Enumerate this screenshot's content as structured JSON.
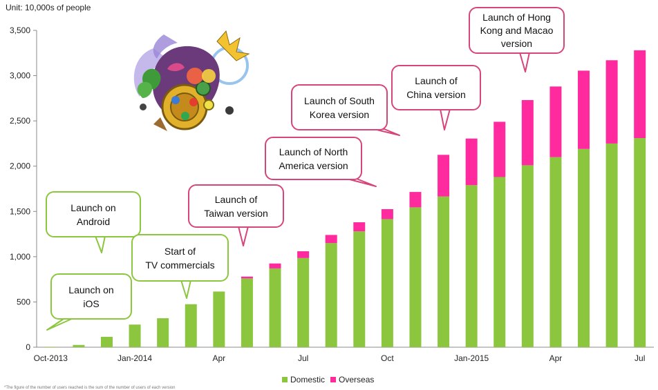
{
  "unit_label": "Unit: 10,000s of people",
  "colors": {
    "domestic": "#8cc63f",
    "overseas": "#ff2a9e",
    "callout_green": "#8cc63f",
    "callout_pink": "#d6457a"
  },
  "chart_data": {
    "type": "bar",
    "stacked": true,
    "title": "",
    "xlabel": "",
    "ylabel": "",
    "ylim": [
      0,
      3500
    ],
    "yticks": [
      "0",
      "500",
      "1,000",
      "1,500",
      "2,000",
      "2,500",
      "3,000",
      "3,500"
    ],
    "xtick_labels": [
      {
        "index": 0,
        "label": "Oct-2013"
      },
      {
        "index": 3,
        "label": "Jan-2014"
      },
      {
        "index": 6,
        "label": "Apr"
      },
      {
        "index": 9,
        "label": "Jul"
      },
      {
        "index": 12,
        "label": "Oct"
      },
      {
        "index": 15,
        "label": "Jan-2015"
      },
      {
        "index": 18,
        "label": "Apr"
      },
      {
        "index": 21,
        "label": "Jul"
      }
    ],
    "categories": [
      "Oct-2013",
      "Nov-2013",
      "Dec-2013",
      "Jan-2014",
      "Feb-2014",
      "Mar-2014",
      "Apr-2014",
      "May-2014",
      "Jun-2014",
      "Jul-2014",
      "Aug-2014",
      "Sep-2014",
      "Oct-2014",
      "Nov-2014",
      "Dec-2014",
      "Jan-2015",
      "Feb-2015",
      "Mar-2015",
      "Apr-2015",
      "May-2015",
      "Jun-2015",
      "Jul-2015"
    ],
    "series": [
      {
        "name": "Domestic",
        "values": [
          5,
          25,
          115,
          250,
          320,
          475,
          615,
          760,
          870,
          985,
          1150,
          1280,
          1415,
          1545,
          1665,
          1790,
          1880,
          2010,
          2100,
          2190,
          2250,
          2310
        ]
      },
      {
        "name": "Overseas",
        "values": [
          0,
          0,
          0,
          0,
          0,
          0,
          0,
          20,
          55,
          75,
          90,
          100,
          110,
          170,
          460,
          515,
          610,
          720,
          780,
          865,
          920,
          970
        ]
      }
    ],
    "legend_position": "bottom",
    "grid": false
  },
  "callouts": [
    {
      "text": "Launch on\niOS",
      "color": "green"
    },
    {
      "text": "Launch on\nAndroid",
      "color": "green"
    },
    {
      "text": "Start of\nTV commercials",
      "color": "green"
    },
    {
      "text": "Launch of\nTaiwan version",
      "color": "pink"
    },
    {
      "text": "Launch of North\nAmerica version",
      "color": "pink"
    },
    {
      "text": "Launch of South\nKorea version",
      "color": "pink"
    },
    {
      "text": "Launch of\nChina version",
      "color": "pink"
    },
    {
      "text": "Launch of Hong\nKong and Macao\nversion",
      "color": "pink"
    }
  ],
  "legend": {
    "domestic": "Domestic",
    "overseas": "Overseas"
  },
  "footnote": "*The figure of the number of users reached is the sum of the number of users of each version"
}
